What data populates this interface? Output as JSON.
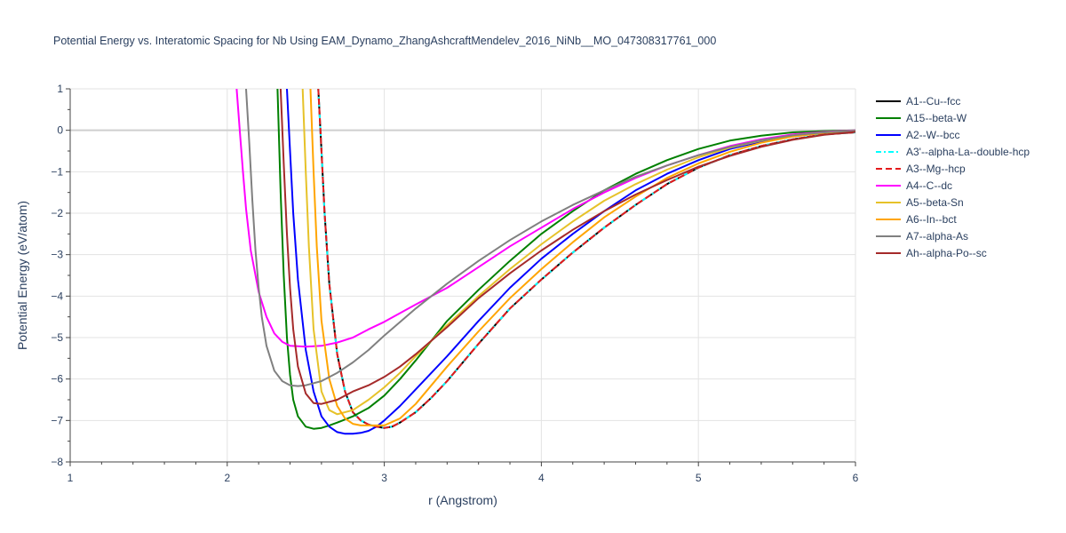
{
  "chart_data": {
    "type": "line",
    "title": "Potential Energy vs. Interatomic Spacing for Nb Using EAM_Dynamo_ZhangAshcraftMendelev_2016_NiNb__MO_047308317761_000",
    "xlabel": "r (Angstrom)",
    "ylabel": "Potential Energy (eV/atom)",
    "xlim": [
      1,
      6
    ],
    "ylim": [
      -8,
      1
    ],
    "x_ticks": [
      "1",
      "2",
      "3",
      "4",
      "5",
      "6"
    ],
    "y_ticks": [
      "1",
      "0",
      "−1",
      "−2",
      "−3",
      "−4",
      "−5",
      "−6",
      "−7",
      "−8"
    ],
    "grid": true,
    "legend_position": "right",
    "series": [
      {
        "name": "A1--Cu--fcc",
        "color": "#000000",
        "dash": "solid",
        "x": [
          2.58,
          2.6,
          2.62,
          2.65,
          2.7,
          2.75,
          2.8,
          2.85,
          2.9,
          2.95,
          3.0,
          3.05,
          3.1,
          3.2,
          3.3,
          3.4,
          3.5,
          3.6,
          3.8,
          4.0,
          4.2,
          4.4,
          4.6,
          4.8,
          5.0,
          5.2,
          5.4,
          5.6,
          5.8,
          6.0
        ],
        "y": [
          1.0,
          -0.5,
          -2.0,
          -3.7,
          -5.4,
          -6.3,
          -6.8,
          -7.0,
          -7.1,
          -7.15,
          -7.18,
          -7.15,
          -7.05,
          -6.8,
          -6.45,
          -6.05,
          -5.6,
          -5.15,
          -4.3,
          -3.6,
          -2.95,
          -2.35,
          -1.8,
          -1.3,
          -0.9,
          -0.6,
          -0.38,
          -0.22,
          -0.1,
          -0.05
        ]
      },
      {
        "name": "A15--beta-W",
        "color": "#008000",
        "dash": "solid",
        "x": [
          2.32,
          2.34,
          2.36,
          2.38,
          2.4,
          2.42,
          2.45,
          2.5,
          2.55,
          2.6,
          2.65,
          2.7,
          2.8,
          2.9,
          3.0,
          3.1,
          3.2,
          3.4,
          3.6,
          3.8,
          4.0,
          4.2,
          4.4,
          4.6,
          4.8,
          5.0,
          5.2,
          5.4,
          5.6,
          5.8,
          6.0
        ],
        "y": [
          1.0,
          -1.5,
          -3.5,
          -5.0,
          -5.9,
          -6.5,
          -6.9,
          -7.15,
          -7.2,
          -7.18,
          -7.12,
          -7.05,
          -6.9,
          -6.7,
          -6.4,
          -6.0,
          -5.55,
          -4.6,
          -3.85,
          -3.15,
          -2.5,
          -1.95,
          -1.45,
          -1.05,
          -0.72,
          -0.45,
          -0.25,
          -0.13,
          -0.05,
          -0.02,
          0.0
        ]
      },
      {
        "name": "A2--W--bcc",
        "color": "#0000ff",
        "dash": "solid",
        "x": [
          2.38,
          2.4,
          2.42,
          2.45,
          2.5,
          2.55,
          2.6,
          2.65,
          2.7,
          2.75,
          2.8,
          2.85,
          2.9,
          2.95,
          3.0,
          3.1,
          3.2,
          3.4,
          3.6,
          3.8,
          4.0,
          4.2,
          4.4,
          4.6,
          4.8,
          5.0,
          5.2,
          5.4,
          5.6,
          5.8,
          6.0
        ],
        "y": [
          1.0,
          -0.5,
          -2.0,
          -3.6,
          -5.3,
          -6.3,
          -6.9,
          -7.15,
          -7.28,
          -7.32,
          -7.32,
          -7.3,
          -7.25,
          -7.15,
          -7.0,
          -6.65,
          -6.25,
          -5.45,
          -4.6,
          -3.8,
          -3.1,
          -2.5,
          -1.95,
          -1.45,
          -1.05,
          -0.72,
          -0.45,
          -0.27,
          -0.14,
          -0.06,
          -0.02
        ]
      },
      {
        "name": "A3'--alpha-La--double-hcp",
        "color": "#00ffff",
        "dash": "6,3,2,3",
        "x": [
          2.58,
          2.6,
          2.62,
          2.65,
          2.7,
          2.75,
          2.8,
          2.85,
          2.9,
          2.95,
          3.0,
          3.05,
          3.1,
          3.2,
          3.3,
          3.4,
          3.5,
          3.6,
          3.8,
          4.0,
          4.2,
          4.4,
          4.6,
          4.8,
          5.0,
          5.2,
          5.4,
          5.6,
          5.8,
          6.0
        ],
        "y": [
          1.0,
          -0.5,
          -2.0,
          -3.7,
          -5.4,
          -6.3,
          -6.8,
          -7.0,
          -7.1,
          -7.15,
          -7.18,
          -7.15,
          -7.05,
          -6.8,
          -6.45,
          -6.05,
          -5.6,
          -5.15,
          -4.3,
          -3.6,
          -2.95,
          -2.35,
          -1.8,
          -1.3,
          -0.9,
          -0.6,
          -0.38,
          -0.22,
          -0.1,
          -0.05
        ]
      },
      {
        "name": "A3--Mg--hcp",
        "color": "#e41a1c",
        "dash": "7,4",
        "x": [
          2.58,
          2.6,
          2.62,
          2.65,
          2.7,
          2.75,
          2.8,
          2.85,
          2.9,
          2.95,
          3.0,
          3.05,
          3.1,
          3.2,
          3.3,
          3.4,
          3.5,
          3.6,
          3.8,
          4.0,
          4.2,
          4.4,
          4.6,
          4.8,
          5.0,
          5.2,
          5.4,
          5.6,
          5.8,
          6.0
        ],
        "y": [
          1.0,
          -0.5,
          -2.0,
          -3.7,
          -5.4,
          -6.3,
          -6.8,
          -7.0,
          -7.1,
          -7.15,
          -7.18,
          -7.15,
          -7.05,
          -6.8,
          -6.45,
          -6.05,
          -5.6,
          -5.15,
          -4.3,
          -3.6,
          -2.95,
          -2.35,
          -1.8,
          -1.3,
          -0.9,
          -0.6,
          -0.38,
          -0.22,
          -0.1,
          -0.05
        ]
      },
      {
        "name": "A4--C--dc",
        "color": "#ff00ff",
        "dash": "solid",
        "x": [
          2.06,
          2.08,
          2.1,
          2.12,
          2.15,
          2.2,
          2.25,
          2.3,
          2.35,
          2.4,
          2.5,
          2.6,
          2.7,
          2.8,
          2.9,
          3.0,
          3.2,
          3.4,
          3.6,
          3.8,
          4.0,
          4.2,
          4.4,
          4.6,
          4.8,
          5.0,
          5.2,
          5.4,
          5.6,
          5.8,
          6.0
        ],
        "y": [
          1.0,
          0.0,
          -1.0,
          -1.9,
          -2.9,
          -3.9,
          -4.5,
          -4.9,
          -5.1,
          -5.2,
          -5.22,
          -5.2,
          -5.12,
          -5.0,
          -4.8,
          -4.62,
          -4.2,
          -3.8,
          -3.3,
          -2.8,
          -2.35,
          -1.9,
          -1.5,
          -1.15,
          -0.85,
          -0.6,
          -0.38,
          -0.22,
          -0.1,
          -0.04,
          0.0
        ]
      },
      {
        "name": "A5--beta-Sn",
        "color": "#e6c229",
        "dash": "solid",
        "x": [
          2.48,
          2.5,
          2.52,
          2.55,
          2.6,
          2.65,
          2.7,
          2.8,
          2.9,
          3.0,
          3.1,
          3.2,
          3.4,
          3.6,
          3.8,
          4.0,
          4.2,
          4.4,
          4.6,
          4.8,
          5.0,
          5.2,
          5.4,
          5.6,
          5.8,
          6.0
        ],
        "y": [
          1.0,
          -1.0,
          -2.8,
          -4.8,
          -6.3,
          -6.75,
          -6.85,
          -6.75,
          -6.5,
          -6.2,
          -5.85,
          -5.45,
          -4.7,
          -4.0,
          -3.35,
          -2.75,
          -2.2,
          -1.7,
          -1.3,
          -0.95,
          -0.65,
          -0.42,
          -0.25,
          -0.12,
          -0.05,
          -0.01
        ]
      },
      {
        "name": "A6--In--bct",
        "color": "#ffa500",
        "dash": "solid",
        "x": [
          2.53,
          2.55,
          2.57,
          2.6,
          2.65,
          2.7,
          2.75,
          2.8,
          2.85,
          2.9,
          3.0,
          3.1,
          3.2,
          3.4,
          3.6,
          3.8,
          4.0,
          4.2,
          4.4,
          4.6,
          4.8,
          5.0,
          5.2,
          5.4,
          5.6,
          5.8,
          6.0
        ],
        "y": [
          1.0,
          -1.0,
          -2.8,
          -4.6,
          -6.0,
          -6.65,
          -6.95,
          -7.08,
          -7.12,
          -7.12,
          -7.12,
          -6.95,
          -6.6,
          -5.7,
          -4.85,
          -4.05,
          -3.35,
          -2.7,
          -2.1,
          -1.6,
          -1.15,
          -0.8,
          -0.52,
          -0.3,
          -0.15,
          -0.06,
          -0.02
        ]
      },
      {
        "name": "A7--alpha-As",
        "color": "#808080",
        "dash": "solid",
        "x": [
          2.12,
          2.14,
          2.16,
          2.18,
          2.2,
          2.22,
          2.25,
          2.3,
          2.35,
          2.4,
          2.45,
          2.5,
          2.6,
          2.7,
          2.8,
          2.9,
          3.0,
          3.2,
          3.4,
          3.6,
          3.8,
          4.0,
          4.2,
          4.4,
          4.6,
          4.8,
          5.0,
          5.2,
          5.4,
          5.6,
          5.8,
          6.0
        ],
        "y": [
          1.0,
          -0.3,
          -1.7,
          -2.9,
          -3.8,
          -4.5,
          -5.2,
          -5.8,
          -6.05,
          -6.15,
          -6.17,
          -6.15,
          -6.05,
          -5.85,
          -5.6,
          -5.3,
          -4.95,
          -4.3,
          -3.7,
          -3.15,
          -2.65,
          -2.2,
          -1.8,
          -1.45,
          -1.12,
          -0.85,
          -0.6,
          -0.4,
          -0.24,
          -0.12,
          -0.05,
          -0.01
        ]
      },
      {
        "name": "Ah--alpha-Po--sc",
        "color": "#a52a2a",
        "dash": "solid",
        "x": [
          2.34,
          2.36,
          2.38,
          2.4,
          2.42,
          2.45,
          2.5,
          2.55,
          2.6,
          2.7,
          2.8,
          2.9,
          3.0,
          3.1,
          3.2,
          3.4,
          3.6,
          3.8,
          4.0,
          4.2,
          4.4,
          4.6,
          4.8,
          5.0,
          5.2,
          5.4,
          5.6,
          5.8,
          6.0
        ],
        "y": [
          1.0,
          -0.8,
          -2.5,
          -3.8,
          -4.8,
          -5.7,
          -6.35,
          -6.58,
          -6.6,
          -6.5,
          -6.3,
          -6.15,
          -5.95,
          -5.7,
          -5.4,
          -4.75,
          -4.05,
          -3.45,
          -2.9,
          -2.4,
          -1.95,
          -1.55,
          -1.2,
          -0.88,
          -0.62,
          -0.4,
          -0.23,
          -0.11,
          -0.04
        ]
      }
    ]
  }
}
